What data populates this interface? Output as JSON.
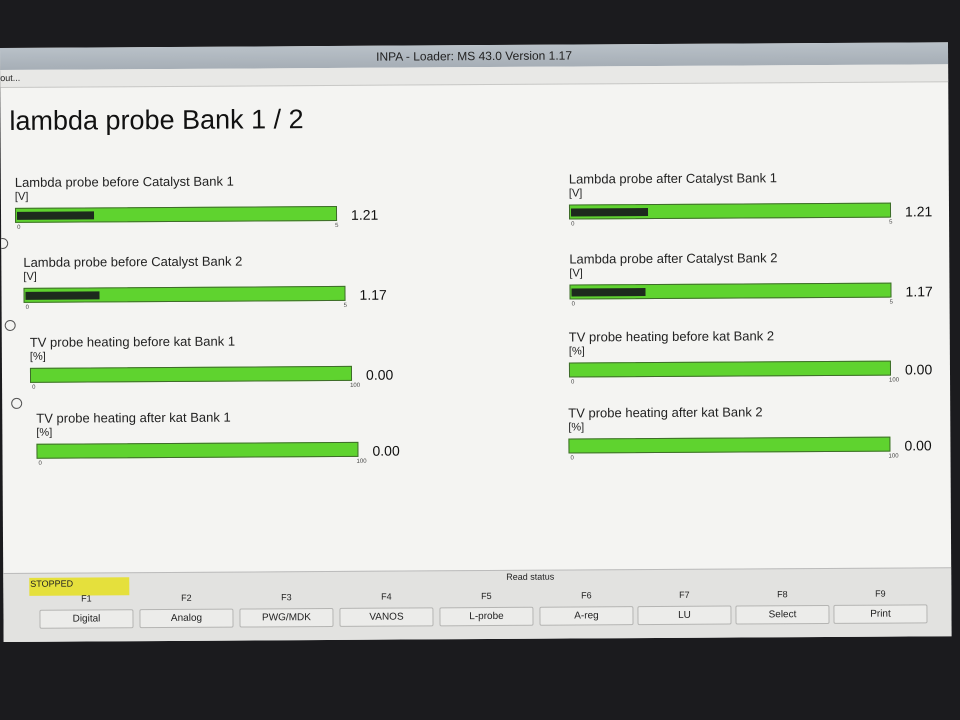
{
  "window": {
    "title": "INPA - Loader:  MS 43.0 Version 1.17",
    "menu": "out..."
  },
  "page": {
    "title": "lambda probe Bank 1 / 2"
  },
  "gauges": [
    {
      "label": "Lambda probe before Catalyst Bank 1",
      "unit": "[V]",
      "value": "1.21",
      "min": "0",
      "max": "5",
      "fraction": 0.242
    },
    {
      "label": "Lambda probe before Catalyst Bank 2",
      "unit": "[V]",
      "value": "1.17",
      "min": "0",
      "max": "5",
      "fraction": 0.234
    },
    {
      "label": "TV probe heating before kat Bank 1",
      "unit": "[%]",
      "value": "0.00",
      "min": "0",
      "max": "100",
      "fraction": 0
    },
    {
      "label": "TV probe heating after kat Bank 1",
      "unit": "[%]",
      "value": "0.00",
      "min": "0",
      "max": "100",
      "fraction": 0
    },
    {
      "label": "Lambda probe after Catalyst Bank 1",
      "unit": "[V]",
      "value": "1.21",
      "min": "0",
      "max": "5",
      "fraction": 0.242
    },
    {
      "label": "Lambda probe after Catalyst Bank 2",
      "unit": "[V]",
      "value": "1.17",
      "min": "0",
      "max": "5",
      "fraction": 0.234
    },
    {
      "label": "TV probe heating before kat Bank 2",
      "unit": "[%]",
      "value": "0.00",
      "min": "0",
      "max": "100",
      "fraction": 0
    },
    {
      "label": "TV probe heating after kat Bank 2",
      "unit": "[%]",
      "value": "0.00",
      "min": "0",
      "max": "100",
      "fraction": 0
    }
  ],
  "status": {
    "state": "STOPPED",
    "read_status": "Read status"
  },
  "fkeys": [
    {
      "key": "F1",
      "label": "Digital"
    },
    {
      "key": "F2",
      "label": "Analog"
    },
    {
      "key": "F3",
      "label": "PWG/MDK"
    },
    {
      "key": "F4",
      "label": "VANOS"
    },
    {
      "key": "F5",
      "label": "L-probe"
    },
    {
      "key": "F6",
      "label": "A-reg"
    },
    {
      "key": "F7",
      "label": "LU"
    },
    {
      "key": "F8",
      "label": "Select"
    },
    {
      "key": "F9",
      "label": "Print"
    }
  ],
  "colors": {
    "bar": "#5fd32f",
    "fill": "#1d2a1d",
    "status_badge": "#e5e03c"
  }
}
